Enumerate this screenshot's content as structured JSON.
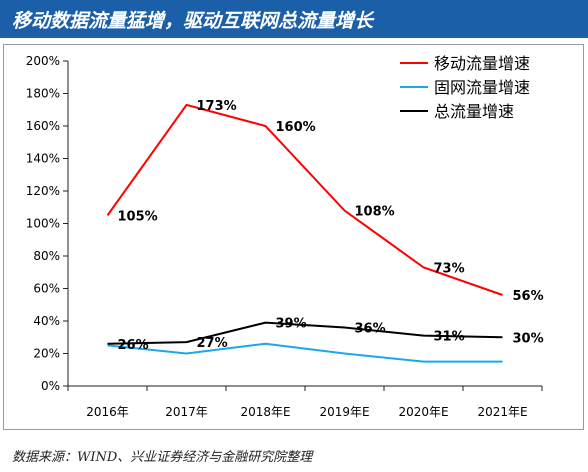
{
  "page": {
    "title": "移动数据流量猛增，驱动互联网总流量增长",
    "source": "数据来源：WIND、兴业证券经济与金融研究院整理"
  },
  "chart_data": {
    "type": "line",
    "title": "",
    "xlabel": "",
    "ylabel": "",
    "categories": [
      "2016年",
      "2017年",
      "2018年E",
      "2019年E",
      "2020年E",
      "2021年E"
    ],
    "ylim": [
      0,
      200
    ],
    "yticks": [
      0,
      20,
      40,
      60,
      80,
      100,
      120,
      140,
      160,
      180,
      200
    ],
    "ytick_labels": [
      "0%",
      "20%",
      "40%",
      "60%",
      "80%",
      "100%",
      "120%",
      "140%",
      "160%",
      "180%",
      "200%"
    ],
    "grid": false,
    "legend_position": "top-right",
    "series": [
      {
        "name": "移动流量增速",
        "color": "#ff0000",
        "values": [
          105,
          173,
          160,
          108,
          73,
          56
        ],
        "labels": [
          "105%",
          "173%",
          "160%",
          "108%",
          "73%",
          "56%"
        ]
      },
      {
        "name": "固网流量增速",
        "color": "#1aa7ec",
        "values": [
          25,
          20,
          26,
          20,
          15,
          15
        ],
        "labels": []
      },
      {
        "name": "总流量增速",
        "color": "#000000",
        "values": [
          26,
          27,
          39,
          36,
          31,
          30
        ],
        "labels": [
          "26%",
          "27%",
          "39%",
          "36%",
          "31%",
          "30%"
        ]
      }
    ]
  }
}
